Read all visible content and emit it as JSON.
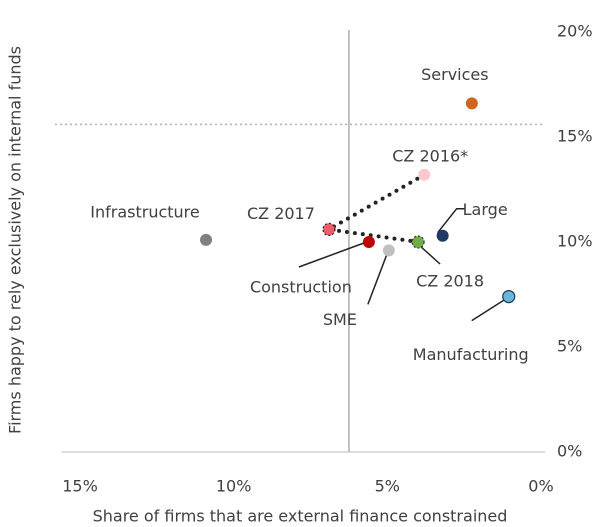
{
  "chart_data": {
    "type": "scatter",
    "x_label": "Share of firms that are external finance constrained",
    "y_label": "Firms happy to rely exclusively on internal funds",
    "xlim": [
      15,
      0
    ],
    "ylim": [
      0,
      20
    ],
    "xticks": [
      {
        "value": 15,
        "label": "15%"
      },
      {
        "value": 10,
        "label": "10%"
      },
      {
        "value": 5,
        "label": "5%"
      },
      {
        "value": 0,
        "label": "0%"
      }
    ],
    "yticks": [
      {
        "value": 0,
        "label": "0%"
      },
      {
        "value": 5,
        "label": "5%"
      },
      {
        "value": 10,
        "label": "10%"
      },
      {
        "value": 15,
        "label": "15%"
      },
      {
        "value": 20,
        "label": "20%"
      }
    ],
    "reference_x": 6.25,
    "reference_y": 15.6,
    "points": [
      {
        "name": "Services",
        "x": 2.25,
        "y": 16.6,
        "color": "#d0661b"
      },
      {
        "name": "CZ 2016*",
        "x": 3.8,
        "y": 13.2,
        "color": "#fbc8cc"
      },
      {
        "name": "Large",
        "x": 3.2,
        "y": 10.3,
        "color": "#1f3864"
      },
      {
        "name": "CZ 2017",
        "x": 6.9,
        "y": 10.6,
        "color": "#f25c6a"
      },
      {
        "name": "Construction",
        "x": 5.6,
        "y": 10.0,
        "color": "#c00000"
      },
      {
        "name": "CZ 2018",
        "x": 4.0,
        "y": 10.0,
        "color": "#70ad47"
      },
      {
        "name": "SME",
        "x": 4.95,
        "y": 9.6,
        "color": "#c0c0c0"
      },
      {
        "name": "Infrastructure",
        "x": 10.9,
        "y": 10.1,
        "color": "#808080"
      },
      {
        "name": "Manufacturing",
        "x": 1.05,
        "y": 7.4,
        "color": "#6bb6d6"
      }
    ],
    "connect": [
      1,
      3,
      5
    ]
  }
}
